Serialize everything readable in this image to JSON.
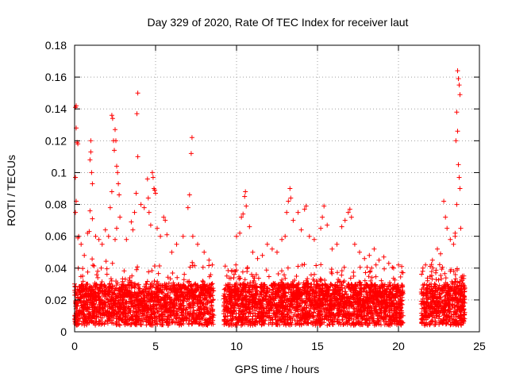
{
  "chart_data": {
    "type": "scatter",
    "title": "Day 329 of 2020, Rate Of TEC Index for receiver laut",
    "xlabel": "GPS time / hours",
    "ylabel": "ROTI / TECUs",
    "xlim": [
      0,
      25
    ],
    "ylim": [
      0,
      0.18
    ],
    "xticks": [
      0,
      5,
      10,
      15,
      20,
      25
    ],
    "xtick_labels": [
      "0",
      "5",
      "10",
      "15",
      "20",
      "25"
    ],
    "yticks": [
      0,
      0.02,
      0.04,
      0.06,
      0.08,
      0.1,
      0.12,
      0.14,
      0.16,
      0.18
    ],
    "ytick_labels": [
      "0",
      "0.02",
      "0.04",
      "0.06",
      "0.08",
      "0.1",
      "0.12",
      "0.14",
      "0.16",
      "0.18"
    ],
    "grid": true,
    "marker": "+",
    "color": "#ff0000",
    "data_gaps_hours": [
      [
        8.6,
        9.2
      ],
      [
        20.3,
        21.4
      ]
    ],
    "series": [
      {
        "name": "ROTI",
        "points": [
          [
            0.05,
            0.141
          ],
          [
            0.1,
            0.142
          ],
          [
            0.1,
            0.128
          ],
          [
            0.15,
            0.119
          ],
          [
            0.2,
            0.118
          ],
          [
            0.05,
            0.097
          ],
          [
            0.1,
            0.082
          ],
          [
            0.05,
            0.075
          ],
          [
            0.2,
            0.059
          ],
          [
            0.25,
            0.06
          ],
          [
            0.4,
            0.055
          ],
          [
            0.6,
            0.048
          ],
          [
            0.8,
            0.062
          ],
          [
            0.9,
            0.063
          ],
          [
            1.0,
            0.12
          ],
          [
            1.0,
            0.113
          ],
          [
            0.95,
            0.108
          ],
          [
            1.05,
            0.1
          ],
          [
            1.1,
            0.093
          ],
          [
            0.95,
            0.076
          ],
          [
            1.1,
            0.071
          ],
          [
            1.3,
            0.06
          ],
          [
            1.5,
            0.058
          ],
          [
            1.7,
            0.055
          ],
          [
            1.9,
            0.064
          ],
          [
            2.1,
            0.06
          ],
          [
            2.3,
            0.136
          ],
          [
            2.35,
            0.134
          ],
          [
            2.4,
            0.12
          ],
          [
            2.45,
            0.114
          ],
          [
            2.5,
            0.127
          ],
          [
            2.55,
            0.12
          ],
          [
            2.6,
            0.104
          ],
          [
            2.65,
            0.1
          ],
          [
            2.7,
            0.093
          ],
          [
            2.75,
            0.086
          ],
          [
            2.3,
            0.088
          ],
          [
            2.2,
            0.078
          ],
          [
            2.8,
            0.072
          ],
          [
            2.6,
            0.065
          ],
          [
            2.5,
            0.058
          ],
          [
            3.2,
            0.058
          ],
          [
            3.5,
            0.069
          ],
          [
            3.6,
            0.064
          ],
          [
            3.7,
            0.075
          ],
          [
            3.9,
            0.15
          ],
          [
            3.85,
            0.137
          ],
          [
            3.9,
            0.11
          ],
          [
            3.8,
            0.087
          ],
          [
            4.1,
            0.08
          ],
          [
            4.3,
            0.078
          ],
          [
            4.5,
            0.096
          ],
          [
            4.55,
            0.084
          ],
          [
            4.6,
            0.075
          ],
          [
            4.7,
            0.067
          ],
          [
            4.8,
            0.1
          ],
          [
            4.85,
            0.097
          ],
          [
            4.9,
            0.09
          ],
          [
            4.95,
            0.089
          ],
          [
            5.0,
            0.087
          ],
          [
            5.1,
            0.065
          ],
          [
            5.3,
            0.06
          ],
          [
            5.5,
            0.072
          ],
          [
            5.6,
            0.07
          ],
          [
            5.7,
            0.061
          ],
          [
            6.0,
            0.05
          ],
          [
            6.3,
            0.055
          ],
          [
            6.7,
            0.06
          ],
          [
            7.0,
            0.078
          ],
          [
            7.1,
            0.086
          ],
          [
            7.2,
            0.112
          ],
          [
            7.25,
            0.122
          ],
          [
            7.3,
            0.06
          ],
          [
            7.6,
            0.055
          ],
          [
            8.0,
            0.05
          ],
          [
            8.3,
            0.045
          ],
          [
            8.5,
            0.042
          ],
          [
            9.4,
            0.035
          ],
          [
            9.7,
            0.038
          ],
          [
            10.0,
            0.06
          ],
          [
            10.2,
            0.062
          ],
          [
            10.3,
            0.072
          ],
          [
            10.4,
            0.074
          ],
          [
            10.5,
            0.085
          ],
          [
            10.55,
            0.088
          ],
          [
            10.6,
            0.079
          ],
          [
            10.8,
            0.066
          ],
          [
            11.0,
            0.05
          ],
          [
            11.3,
            0.046
          ],
          [
            11.6,
            0.048
          ],
          [
            11.9,
            0.055
          ],
          [
            12.2,
            0.052
          ],
          [
            12.5,
            0.05
          ],
          [
            12.8,
            0.058
          ],
          [
            13.0,
            0.06
          ],
          [
            13.1,
            0.075
          ],
          [
            13.2,
            0.082
          ],
          [
            13.3,
            0.09
          ],
          [
            13.35,
            0.084
          ],
          [
            13.5,
            0.07
          ],
          [
            13.8,
            0.075
          ],
          [
            14.0,
            0.064
          ],
          [
            14.2,
            0.077
          ],
          [
            14.3,
            0.079
          ],
          [
            14.5,
            0.06
          ],
          [
            14.8,
            0.058
          ],
          [
            15.2,
            0.065
          ],
          [
            15.3,
            0.072
          ],
          [
            15.4,
            0.079
          ],
          [
            15.6,
            0.067
          ],
          [
            15.9,
            0.052
          ],
          [
            16.2,
            0.055
          ],
          [
            16.5,
            0.066
          ],
          [
            16.7,
            0.07
          ],
          [
            16.9,
            0.075
          ],
          [
            17.0,
            0.077
          ],
          [
            17.1,
            0.072
          ],
          [
            17.3,
            0.055
          ],
          [
            17.6,
            0.05
          ],
          [
            17.9,
            0.046
          ],
          [
            18.2,
            0.048
          ],
          [
            18.5,
            0.052
          ],
          [
            18.8,
            0.045
          ],
          [
            19.1,
            0.047
          ],
          [
            19.4,
            0.043
          ],
          [
            19.7,
            0.04
          ],
          [
            20.0,
            0.042
          ],
          [
            20.2,
            0.041
          ],
          [
            21.5,
            0.038
          ],
          [
            21.8,
            0.032
          ],
          [
            22.1,
            0.045
          ],
          [
            22.4,
            0.052
          ],
          [
            22.6,
            0.049
          ],
          [
            22.8,
            0.082
          ],
          [
            22.9,
            0.072
          ],
          [
            23.0,
            0.065
          ],
          [
            23.2,
            0.058
          ],
          [
            23.4,
            0.055
          ],
          [
            23.5,
            0.06
          ],
          [
            23.55,
            0.12
          ],
          [
            23.6,
            0.138
          ],
          [
            23.65,
            0.164
          ],
          [
            23.7,
            0.159
          ],
          [
            23.75,
            0.155
          ],
          [
            23.8,
            0.149
          ],
          [
            23.65,
            0.126
          ],
          [
            23.7,
            0.105
          ],
          [
            23.75,
            0.097
          ],
          [
            23.8,
            0.09
          ],
          [
            23.6,
            0.08
          ],
          [
            23.85,
            0.065
          ],
          [
            23.5,
            0.062
          ]
        ]
      }
    ]
  }
}
